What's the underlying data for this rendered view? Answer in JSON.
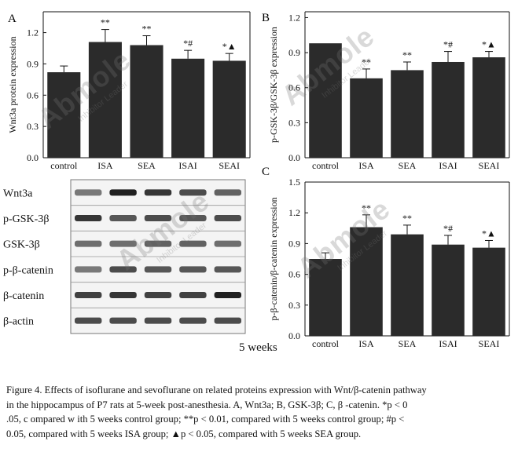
{
  "chart_data": [
    {
      "panel": "A",
      "type": "bar",
      "ylabel": "Wnt3a protein expression",
      "categories": [
        "control",
        "ISA",
        "SEA",
        "ISAI",
        "SEAI"
      ],
      "values": [
        0.82,
        1.11,
        1.08,
        0.95,
        0.93
      ],
      "errors": [
        0.06,
        0.12,
        0.09,
        0.08,
        0.07
      ],
      "marks": [
        "",
        "**",
        "**",
        "*#",
        "*▲"
      ],
      "yticks": [
        "0.0",
        "0.3",
        "0.6",
        "0.9",
        "1.2"
      ],
      "ylim": [
        0,
        1.4
      ]
    },
    {
      "panel": "B",
      "type": "bar",
      "ylabel": "p-GSK-3β/GSK-3β expression",
      "categories": [
        "control",
        "ISA",
        "SEA",
        "ISAI",
        "SEAI"
      ],
      "values": [
        0.98,
        0.68,
        0.75,
        0.82,
        0.86
      ],
      "errors": [
        0.0,
        0.08,
        0.07,
        0.09,
        0.05
      ],
      "marks": [
        "",
        "**",
        "**",
        "*#",
        "*▲"
      ],
      "yticks": [
        "0.0",
        "0.3",
        "0.6",
        "0.9",
        "1.2"
      ],
      "ylim": [
        0,
        1.25
      ]
    },
    {
      "panel": "C",
      "type": "bar",
      "ylabel": "p-β-catenin/β-catenin expression",
      "categories": [
        "control",
        "ISA",
        "SEA",
        "ISAI",
        "SEAI"
      ],
      "values": [
        0.75,
        1.06,
        0.99,
        0.89,
        0.86
      ],
      "errors": [
        0.06,
        0.12,
        0.09,
        0.09,
        0.07
      ],
      "marks": [
        "",
        "**",
        "**",
        "*#",
        "*▲"
      ],
      "yticks": [
        "0.0",
        "0.3",
        "0.6",
        "0.9",
        "1.2",
        "1.5"
      ],
      "ylim": [
        0,
        1.5
      ]
    }
  ],
  "blot": {
    "labels": [
      "Wnt3a",
      "p-GSK-3β",
      "GSK-3β",
      "p-β-catenin",
      "β-catenin",
      "β-actin"
    ],
    "footer": "5 weeks"
  },
  "caption": {
    "line1": "Figure 4. Effects of isoflurane and sevoflurane on related proteins expression with Wnt/β-catenin pathway",
    "line2": "in the hippocampus of P7 rats at 5-week post-anesthesia. A, Wnt3a; B, GSK-3β; C, β -catenin. *p < 0",
    "line3": ".05, c ompared w ith 5 weeks control group; **p < 0.01, compared with 5 weeks control group; #p <",
    "line4": "0.05, compared with 5 weeks ISA group; ▲p < 0.05, compared with 5 weeks SEA group."
  },
  "watermark": {
    "big": "Abmole",
    "small": "Inhibitor Leader"
  },
  "colors": {
    "bar": "#2b2b2b",
    "ink": "#111111"
  }
}
